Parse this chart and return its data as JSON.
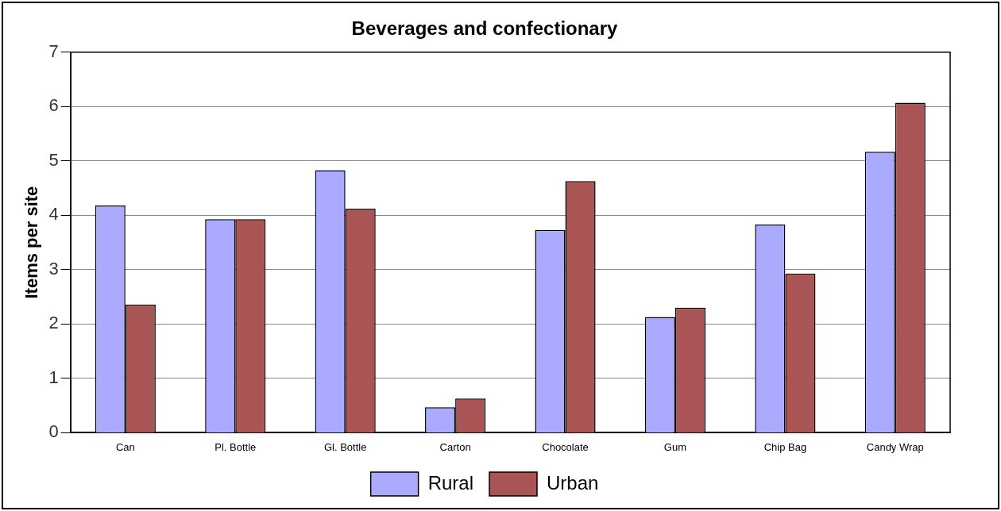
{
  "chart_data": {
    "type": "bar",
    "title": "Beverages and confectionary",
    "ylabel": "Items per site",
    "categories": [
      "Can",
      "Pl. Bottle",
      "Gl. Bottle",
      "Carton",
      "Chocolate",
      "Gum",
      "Chip Bag",
      "Candy Wrap"
    ],
    "series": [
      {
        "name": "Rural",
        "color": "#aaaaff",
        "values": [
          4.18,
          3.93,
          4.83,
          0.47,
          3.73,
          2.13,
          3.83,
          5.17
        ]
      },
      {
        "name": "Urban",
        "color": "#aa5555",
        "values": [
          2.36,
          3.93,
          4.12,
          0.63,
          4.63,
          2.3,
          2.93,
          6.07
        ]
      }
    ],
    "ylim": [
      0,
      7
    ],
    "yticks": [
      0,
      1,
      2,
      3,
      4,
      5,
      6,
      7
    ],
    "grid": "y",
    "legend": "bottom"
  }
}
